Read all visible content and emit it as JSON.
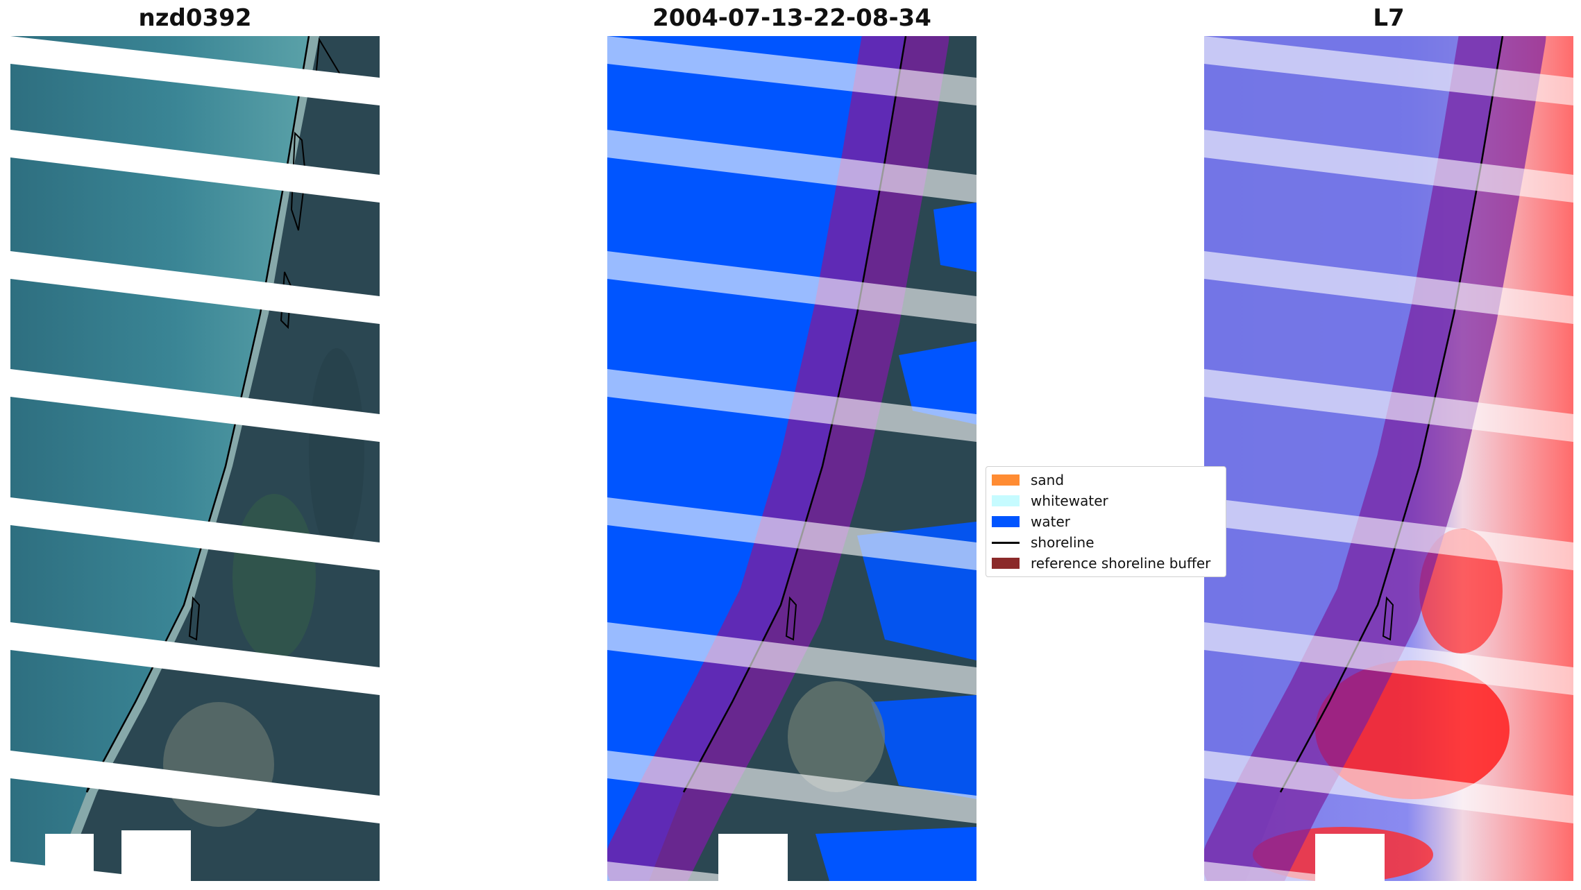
{
  "panels": [
    {
      "title": "nzd0392",
      "kind": "rgb"
    },
    {
      "title": "2004-07-13-22-08-34",
      "kind": "classified"
    },
    {
      "title": "L7",
      "kind": "index"
    }
  ],
  "legend": {
    "items": [
      {
        "label": "sand",
        "type": "patch",
        "color": "#ff8c33"
      },
      {
        "label": "whitewater",
        "type": "patch",
        "color": "#c6fbff"
      },
      {
        "label": "water",
        "type": "patch",
        "color": "#0055ff"
      },
      {
        "label": "shoreline",
        "type": "line",
        "color": "#000000"
      },
      {
        "label": "reference shoreline buffer",
        "type": "patch",
        "color": "#8b2a2a"
      }
    ]
  },
  "colors": {
    "ocean": "#2d6b7a",
    "land": "#2f4a55",
    "water_class": "#0055ff",
    "buffer": "#7a1fa0",
    "index_low": "#6f70e6",
    "index_high": "#ff2a2a"
  }
}
